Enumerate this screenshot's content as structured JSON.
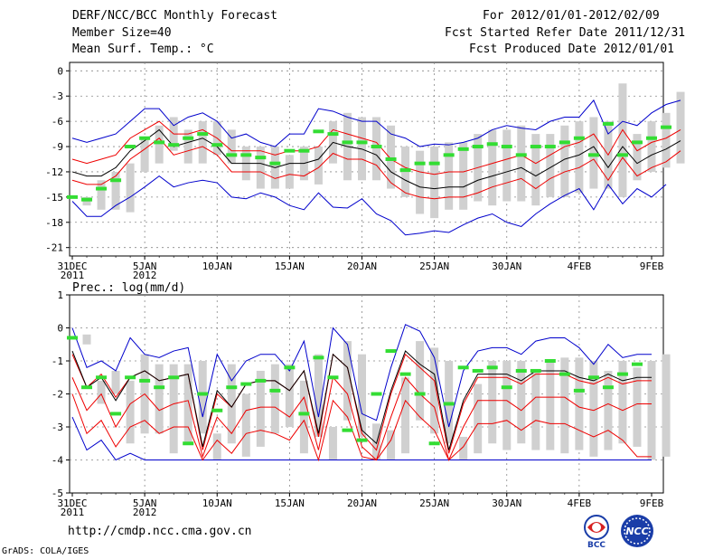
{
  "header": {
    "title": "DERF/NCC/BCC Monthly Forecast",
    "member_size": "Member Size=40",
    "variable1": "Mean Surf. Temp.: °C",
    "period": "For 2012/01/01-2012/02/09",
    "started": "Fcst Started Refer Date 2011/12/31",
    "produced": "Fcst Produced Date 2012/01/01"
  },
  "footer": {
    "url": "http://cmdp.ncc.cma.gov.cn",
    "grads": "GrADS: COLA/IGES",
    "logo1_text": "BCC",
    "logo2_text": "NCC"
  },
  "colors": {
    "ensemble_mean": "#000000",
    "spread_lines": "#ee0000",
    "envelope": "#0000cc",
    "observation": "#33dd33",
    "boxes": "#d0d0d0"
  },
  "chart_data": [
    {
      "type": "line",
      "title": "Mean Surf. Temp.: °C",
      "x_start_day": 0,
      "x_ticks": [
        0,
        5,
        10,
        15,
        20,
        25,
        30,
        35,
        40
      ],
      "x_tick_labels": [
        "31DEC",
        "5JAN",
        "10JAN",
        "15JAN",
        "20JAN",
        "25JAN",
        "30JAN",
        "4FEB",
        "9FEB"
      ],
      "x_sub_labels": [
        "2011",
        "2012",
        "",
        "",
        "",
        "",
        "",
        "",
        ""
      ],
      "ylim": [
        -22,
        1
      ],
      "y_ticks": [
        0,
        -3,
        -6,
        -9,
        -12,
        -15,
        -18,
        -21
      ],
      "series": [
        {
          "name": "ensemble mean",
          "values": [
            -12,
            -12.5,
            -12.5,
            -11.5,
            -9.5,
            -8.3,
            -7,
            -9,
            -8.5,
            -8,
            -9,
            -11,
            -11,
            -11,
            -11.5,
            -11,
            -11,
            -10.5,
            -8.5,
            -9,
            -9.3,
            -10,
            -12,
            -13,
            -13.8,
            -14,
            -13.8,
            -13.8,
            -13,
            -12.5,
            -12,
            -11.5,
            -12.5,
            -11.5,
            -10.5,
            -10,
            -9,
            -11.5,
            -9,
            -11,
            -10,
            -9.3,
            -8.3
          ]
        },
        {
          "name": "upper spread",
          "values": [
            -10.5,
            -11,
            -10.5,
            -10,
            -8,
            -7,
            -6,
            -7.5,
            -7.5,
            -7,
            -8,
            -9.5,
            -9.5,
            -9.5,
            -10,
            -9.5,
            -9.5,
            -9,
            -7,
            -7.5,
            -8,
            -8.5,
            -10.5,
            -11.5,
            -12,
            -12.3,
            -12,
            -12,
            -11.5,
            -11,
            -10.5,
            -10,
            -11,
            -10,
            -9,
            -8.5,
            -7.5,
            -10,
            -7,
            -9.5,
            -8.5,
            -8,
            -7
          ]
        },
        {
          "name": "lower spread",
          "values": [
            -13,
            -13.5,
            -13.5,
            -12.5,
            -10.5,
            -9.3,
            -8,
            -10,
            -9.5,
            -9,
            -10,
            -12,
            -12,
            -12,
            -12.8,
            -12.3,
            -12.5,
            -11.5,
            -9.8,
            -10.5,
            -10.5,
            -11.2,
            -13.3,
            -14.5,
            -15,
            -15.2,
            -15,
            -15,
            -14.5,
            -13.8,
            -13.3,
            -12.8,
            -14,
            -12.8,
            -12,
            -11.5,
            -10.5,
            -13,
            -10.3,
            -12.5,
            -11.5,
            -10.8,
            -9.5
          ]
        },
        {
          "name": "envelope max",
          "values": [
            -8,
            -8.5,
            -8,
            -7.5,
            -6,
            -4.5,
            -4.5,
            -6.5,
            -5.5,
            -5,
            -6,
            -8,
            -7.5,
            -8.5,
            -9,
            -7.5,
            -7.5,
            -4.5,
            -4.8,
            -5.5,
            -6,
            -6,
            -7.5,
            -8,
            -9,
            -8.7,
            -8.8,
            -8.5,
            -8,
            -7,
            -6.5,
            -6.8,
            -7,
            -6,
            -5.5,
            -5.5,
            -3.5,
            -7.5,
            -6,
            -6.5,
            -5,
            -4,
            -3.5
          ]
        },
        {
          "name": "envelope min",
          "values": [
            -15.5,
            -17.3,
            -17.3,
            -16,
            -15,
            -13.8,
            -12.5,
            -13.8,
            -13.3,
            -13,
            -13.3,
            -15,
            -15.2,
            -14.5,
            -15,
            -16,
            -16.5,
            -14.5,
            -16.2,
            -16.3,
            -15.2,
            -17,
            -17.8,
            -19.5,
            -19.3,
            -19,
            -19.2,
            -18.3,
            -17.5,
            -17,
            -18,
            -18.5,
            -17,
            -15.8,
            -14.8,
            -14,
            -16.5,
            -13.5,
            -15.8,
            -14,
            -15,
            -13.5
          ]
        },
        {
          "name": "observation",
          "values": [
            -15,
            -15.3,
            -14,
            -13,
            -9,
            -8,
            -8.5,
            -8.8,
            -8,
            -7.5,
            -8.8,
            -10,
            -10,
            -10.3,
            -11,
            -9.5,
            -9.5,
            -7.2,
            -7.5,
            -8.5,
            -8.5,
            -9,
            -10.5,
            -11.8,
            -11,
            -11,
            -10,
            -9.3,
            -9,
            -8.7,
            -9,
            -10,
            -9,
            -9,
            -8.5,
            -8,
            -10,
            -6.3,
            -10,
            -8.5,
            -8,
            -6.7
          ]
        },
        {
          "name": "box upper",
          "values": [
            -15,
            -13,
            -12,
            -11,
            -8,
            -6.5,
            -5.5,
            -7,
            -6,
            -6,
            -7,
            -9,
            -9,
            -9,
            -10,
            -9,
            -9,
            -6,
            -5,
            -5.5,
            -5.5,
            -6.5,
            -9,
            -9.5,
            -9,
            -8.5,
            -8.5,
            -7.5,
            -7,
            -7,
            -6.5,
            -7.5,
            -7.5,
            -6.5,
            -6,
            -5.5,
            -6,
            -1.5,
            -7.5,
            -6,
            -5,
            -2.5
          ]
        },
        {
          "name": "box lower",
          "values": [
            -16,
            -16.5,
            -16.5,
            -16.8,
            -12,
            -11,
            -9.5,
            -11,
            -11,
            -10,
            -11,
            -13,
            -14,
            -14,
            -14,
            -13,
            -13.5,
            -11,
            -13,
            -13,
            -13,
            -14,
            -15,
            -17,
            -17.5,
            -16.5,
            -16.5,
            -15.5,
            -16,
            -15.5,
            -15.5,
            -16,
            -15,
            -15,
            -14.5,
            -14,
            -14,
            -15,
            -13,
            -12,
            -11.5,
            -11
          ]
        }
      ]
    },
    {
      "type": "line",
      "title": "Prec.: log(mm/d)",
      "x_start_day": 0,
      "x_ticks": [
        0,
        5,
        10,
        15,
        20,
        25,
        30,
        35,
        40
      ],
      "x_tick_labels": [
        "31DEC",
        "5JAN",
        "10JAN",
        "15JAN",
        "20JAN",
        "25JAN",
        "30JAN",
        "4FEB",
        "9FEB"
      ],
      "x_sub_labels": [
        "2011",
        "2012",
        "",
        "",
        "",
        "",
        "",
        "",
        ""
      ],
      "ylim": [
        -5,
        1
      ],
      "y_ticks": [
        1,
        0,
        -1,
        -2,
        -3,
        -4,
        -5
      ],
      "series": [
        {
          "name": "ensemble mean",
          "values": [
            -0.7,
            -1.8,
            -1.5,
            -2.2,
            -1.5,
            -1.3,
            -1.6,
            -1.5,
            -1.4,
            -3.6,
            -1.9,
            -2.4,
            -1.7,
            -1.6,
            -1.6,
            -1.9,
            -1.3,
            -3.2,
            -0.8,
            -1.2,
            -3.1,
            -3.5,
            -1.9,
            -0.7,
            -1.1,
            -1.4,
            -3.7,
            -2.2,
            -1.4,
            -1.4,
            -1.4,
            -1.6,
            -1.3,
            -1.3,
            -1.3,
            -1.5,
            -1.6,
            -1.4,
            -1.6,
            -1.5,
            -1.5
          ]
        },
        {
          "name": "upper red",
          "values": [
            -0.8,
            -1.8,
            -1.4,
            -2.1,
            -1.5,
            -1.3,
            -1.6,
            -1.5,
            -1.4,
            -3.7,
            -2,
            -2.4,
            -1.7,
            -1.6,
            -1.6,
            -1.9,
            -1.3,
            -3.3,
            -0.8,
            -1.2,
            -3.2,
            -3.7,
            -2,
            -0.8,
            -1.2,
            -1.6,
            -3.8,
            -2.3,
            -1.5,
            -1.5,
            -1.5,
            -1.7,
            -1.4,
            -1.4,
            -1.4,
            -1.6,
            -1.7,
            -1.5,
            -1.7,
            -1.6,
            -1.6
          ]
        },
        {
          "name": "middle red",
          "values": [
            -1.5,
            -2.5,
            -2,
            -3,
            -2.3,
            -2,
            -2.5,
            -2.3,
            -2.2,
            -3.9,
            -2.7,
            -3.2,
            -2.5,
            -2.4,
            -2.4,
            -2.7,
            -2.1,
            -3.7,
            -1.5,
            -2,
            -3.6,
            -4,
            -2.7,
            -1.5,
            -2,
            -2.4,
            -4,
            -3,
            -2.2,
            -2.2,
            -2.2,
            -2.5,
            -2.1,
            -2.1,
            -2.1,
            -2.4,
            -2.5,
            -2.3,
            -2.5,
            -2.3,
            -2.3
          ]
        },
        {
          "name": "lower red",
          "values": [
            -2,
            -3.2,
            -2.8,
            -3.6,
            -3,
            -2.8,
            -3.2,
            -3,
            -3,
            -4,
            -3.4,
            -3.8,
            -3.2,
            -3.1,
            -3.2,
            -3.4,
            -2.8,
            -4,
            -2.2,
            -2.7,
            -3.9,
            -4,
            -3.4,
            -2.2,
            -2.7,
            -3.1,
            -4,
            -3.6,
            -2.9,
            -2.9,
            -2.8,
            -3.1,
            -2.8,
            -2.9,
            -2.9,
            -3.1,
            -3.3,
            -3.1,
            -3.4,
            -3.9,
            -3.9
          ]
        },
        {
          "name": "envelope max",
          "values": [
            0,
            -1.2,
            -1,
            -1.3,
            -0.3,
            -0.8,
            -0.9,
            -0.7,
            -0.6,
            -2.7,
            -0.8,
            -1.6,
            -1,
            -0.8,
            -0.8,
            -1.3,
            -0.4,
            -2.7,
            0,
            -0.5,
            -2.6,
            -2.8,
            -1.2,
            0.1,
            -0.1,
            -0.9,
            -3,
            -1.3,
            -0.7,
            -0.6,
            -0.6,
            -0.8,
            -0.4,
            -0.3,
            -0.3,
            -0.6,
            -1.1,
            -0.5,
            -0.9,
            -0.8,
            -0.8
          ]
        },
        {
          "name": "envelope min",
          "values": [
            -2.7,
            -3.7,
            -3.4,
            -4,
            -3.8,
            -4,
            -4,
            -4,
            -4,
            -4,
            -4,
            -4,
            -4,
            -4,
            -4,
            -4,
            -4,
            -4,
            -4,
            -4,
            -4,
            -4,
            -4,
            -4,
            -4,
            -4,
            -4,
            -4,
            -4,
            -4,
            -4,
            -4,
            -4,
            -4,
            -4,
            -4,
            -4,
            -4,
            -4,
            -4,
            -4
          ]
        },
        {
          "name": "observation",
          "values": [
            -0.3,
            -1.8,
            -1.5,
            -2.6,
            -1.5,
            -1.6,
            -1.8,
            -1.5,
            -3.5,
            -2,
            -2.5,
            -1.8,
            -1.7,
            -1.6,
            -1.9,
            -1.2,
            -2.6,
            -0.9,
            -1.5,
            -3.1,
            -3.4,
            -2,
            -0.7,
            -1.4,
            -2,
            -3.5,
            -2.3,
            -1.2,
            -1.3,
            -1.2,
            -1.8,
            -1.3,
            -1.3,
            -1,
            -1.4,
            -1.9,
            -1.5,
            -1.8,
            -1.4,
            -1.1
          ]
        },
        {
          "name": "box upper",
          "values": [
            -0.2,
            -1.6,
            -1.3,
            -1.6,
            -0.8,
            -1.1,
            -1.1,
            -1.1,
            -1,
            -3.2,
            -1.1,
            -2,
            -1.3,
            -1.1,
            -1.1,
            -1.6,
            -0.8,
            -3,
            -0.4,
            -0.8,
            -2.9,
            -3.1,
            -1.5,
            -0.4,
            -0.6,
            -1,
            -3.3,
            -1.7,
            -1,
            -1,
            -1,
            -1.3,
            -1,
            -0.9,
            -0.9,
            -1,
            -1.3,
            -1,
            -1.2,
            -1,
            -0.8
          ]
        },
        {
          "name": "box lower",
          "values": [
            -0.5,
            -2.3,
            -2,
            -3.5,
            -3.2,
            -3.2,
            -3.8,
            -3.5,
            -3.2,
            -4,
            -3.5,
            -3.9,
            -3.6,
            -3.2,
            -3,
            -3.8,
            -3.3,
            -4,
            -2.8,
            -3.3,
            -4,
            -4,
            -3.8,
            -2.8,
            -3.2,
            -3.5,
            -4,
            -3.8,
            -3.5,
            -3.7,
            -3.5,
            -3.7,
            -3.7,
            -3.8,
            -3.7,
            -3.9,
            -3.7,
            -3.5,
            -3.6,
            -4,
            -3.9
          ]
        }
      ]
    }
  ]
}
